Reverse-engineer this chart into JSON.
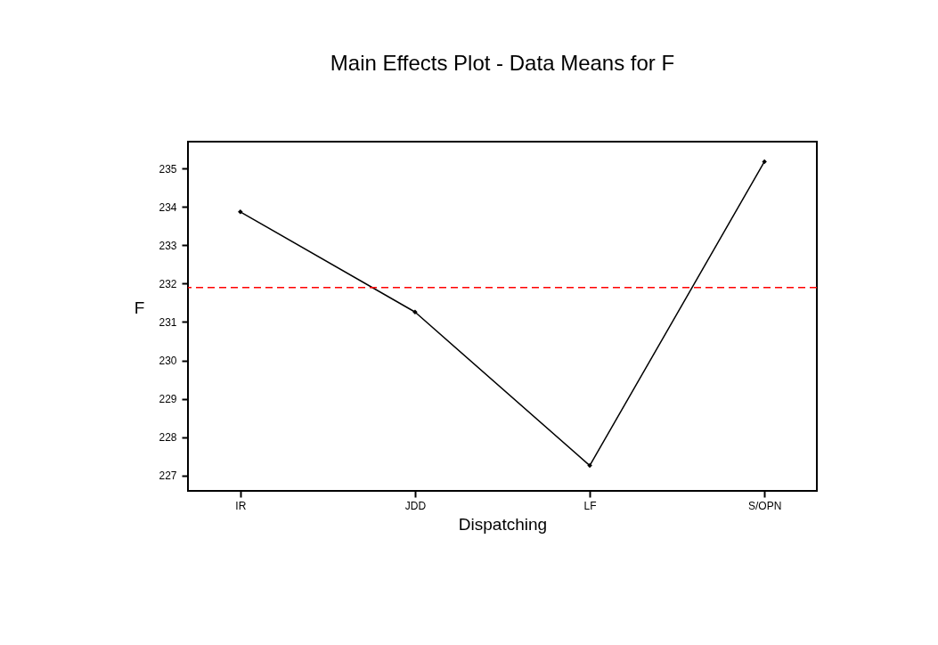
{
  "chart_data": {
    "type": "line",
    "title": "Main Effects Plot - Data Means for F",
    "xlabel": "Dispatching",
    "ylabel": "F",
    "categories": [
      "IR",
      "JDD",
      "LF",
      "S/OPN"
    ],
    "series": [
      {
        "color": "#000000",
        "values": [
          233.87,
          231.26,
          227.26,
          235.18
        ]
      }
    ],
    "ylim": [
      226.6,
      235.7
    ],
    "yticks": [
      227,
      228,
      229,
      230,
      231,
      232,
      233,
      234,
      235
    ],
    "ref_lines": [
      {
        "axis": "y",
        "value": 231.9,
        "color": "#ff0000",
        "line_style": "dashed"
      }
    ],
    "marker": "diamond",
    "line_style": "solid",
    "grid": false
  }
}
